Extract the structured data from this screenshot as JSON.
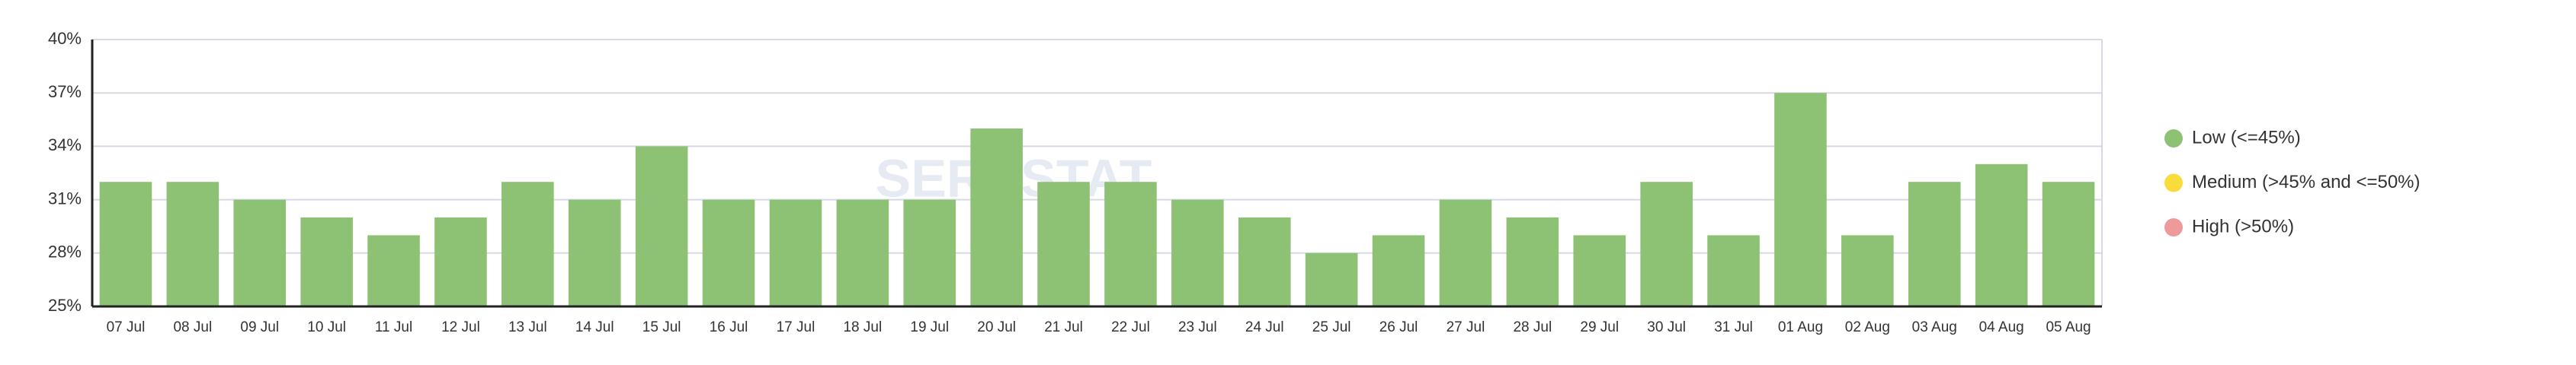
{
  "chart_data": {
    "type": "bar",
    "watermark": "SERPSTAT",
    "categories": [
      "07 Jul",
      "08 Jul",
      "09 Jul",
      "10 Jul",
      "11 Jul",
      "12 Jul",
      "13 Jul",
      "14 Jul",
      "15 Jul",
      "16 Jul",
      "17 Jul",
      "18 Jul",
      "19 Jul",
      "20 Jul",
      "21 Jul",
      "22 Jul",
      "23 Jul",
      "24 Jul",
      "25 Jul",
      "26 Jul",
      "27 Jul",
      "28 Jul",
      "29 Jul",
      "30 Jul",
      "31 Jul",
      "01 Aug",
      "02 Aug",
      "03 Aug",
      "04 Aug",
      "05 Aug"
    ],
    "values": [
      32,
      32,
      31,
      30,
      29,
      30,
      32,
      31,
      34,
      31,
      31,
      31,
      31,
      35,
      32,
      32,
      31,
      30,
      28,
      29,
      31,
      30,
      29,
      32,
      29,
      37,
      29,
      32,
      33,
      32
    ],
    "ylim": [
      25,
      40
    ],
    "yticks": [
      {
        "value": 25,
        "label": "25%"
      },
      {
        "value": 28,
        "label": "28%"
      },
      {
        "value": 31,
        "label": "31%"
      },
      {
        "value": 34,
        "label": "34%"
      },
      {
        "value": 37,
        "label": "37%"
      },
      {
        "value": 40,
        "label": "40%"
      }
    ],
    "grid": true,
    "bar_legend_index": 0,
    "legend": [
      {
        "name": "Low (<=45%)",
        "color": "#8dc174"
      },
      {
        "name": "Medium (>45% and <=50%)",
        "color": "#f7dc3c"
      },
      {
        "name": "High (>50%)",
        "color": "#ee9a9a"
      }
    ]
  }
}
